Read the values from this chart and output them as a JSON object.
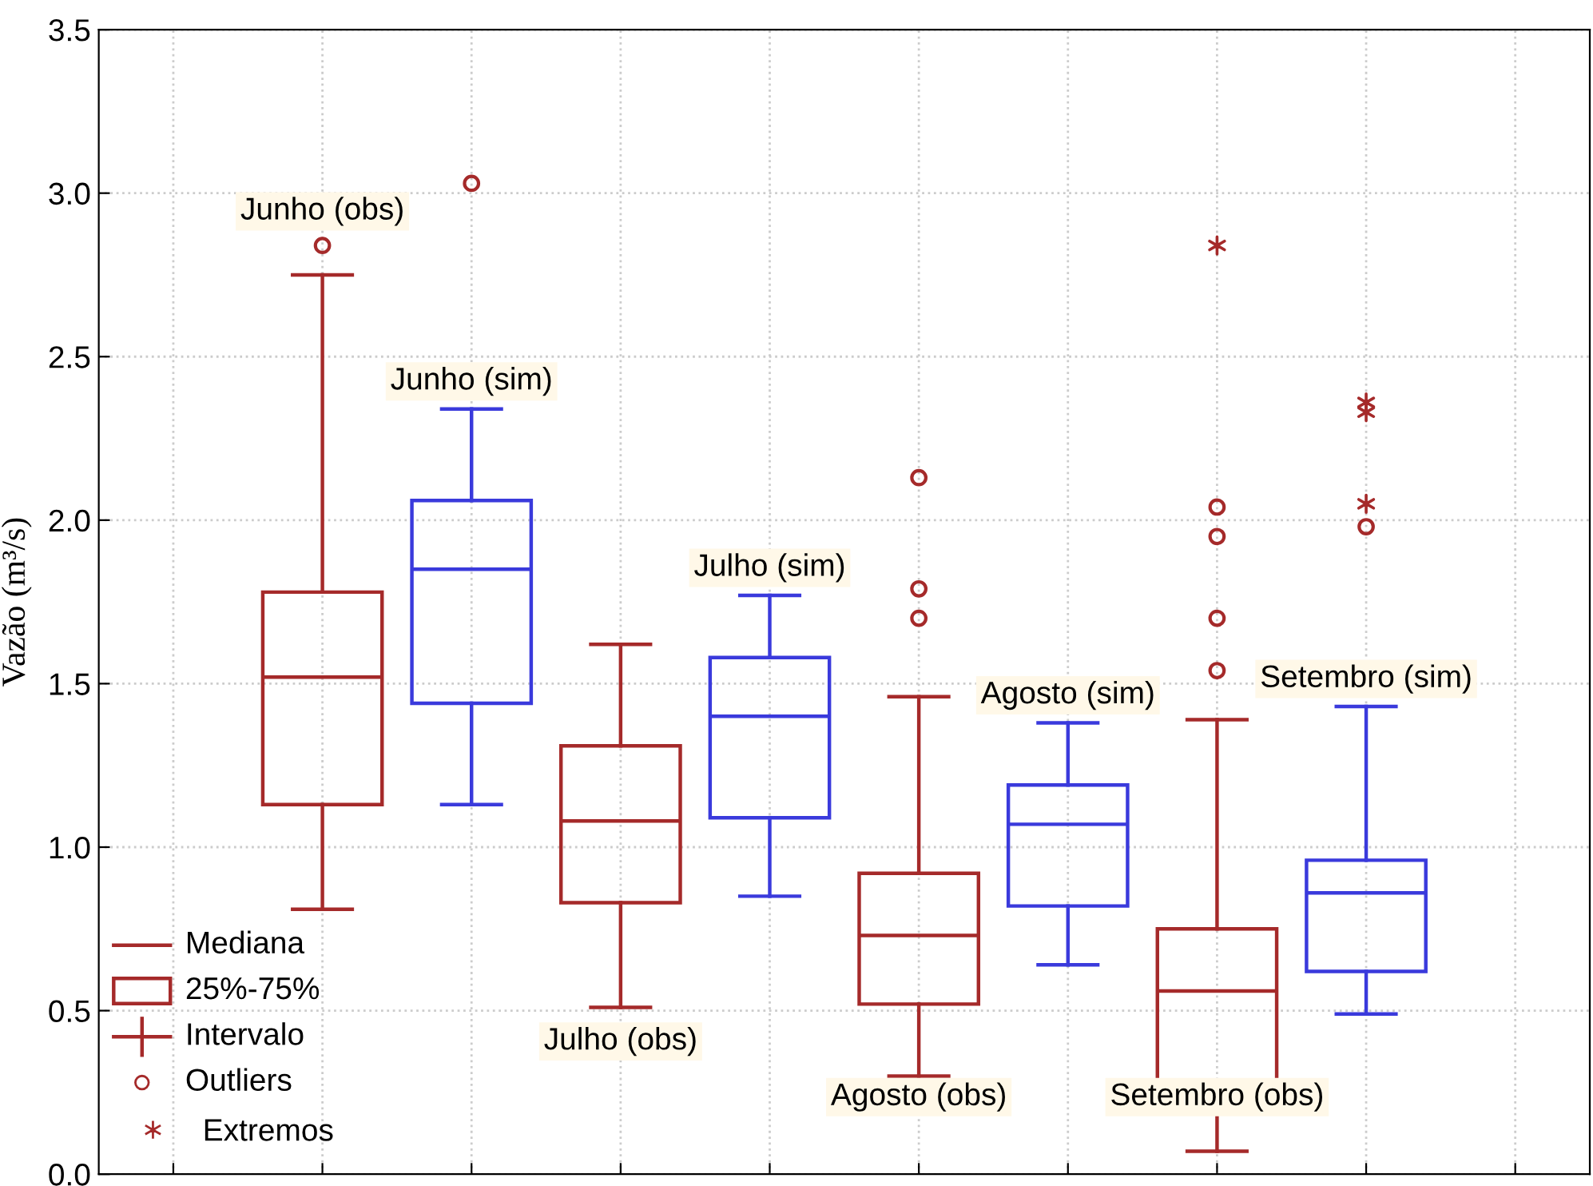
{
  "chart_data": {
    "type": "box",
    "ylabel": "Vazão (m³/s)",
    "categories": [
      null,
      null,
      null,
      null,
      null,
      null,
      null,
      null,
      null,
      null
    ],
    "colors": [
      null,
      "#a52a2a",
      "#3a3adc",
      "#a52a2a",
      "#3a3adc",
      "#a52a2a",
      "#3a3adc",
      "#a52a2a",
      "#3a3adc",
      null
    ],
    "boxes": [
      null,
      {
        "low": 0.81,
        "q1": 1.13,
        "median": 1.52,
        "q3": 1.78,
        "high": 2.75,
        "outliers": [
          2.84
        ]
      },
      {
        "low": 1.13,
        "q1": 1.44,
        "median": 1.85,
        "q3": 2.06,
        "high": 2.34,
        "outliers": [
          3.03
        ]
      },
      {
        "low": 0.51,
        "q1": 0.83,
        "median": 1.08,
        "q3": 1.31,
        "high": 1.62
      },
      {
        "low": 0.85,
        "q1": 1.09,
        "median": 1.4,
        "q3": 1.58,
        "high": 1.77
      },
      {
        "low": 0.3,
        "q1": 0.52,
        "median": 0.73,
        "q3": 0.92,
        "high": 1.46,
        "outliers": [
          2.13,
          1.79,
          1.7
        ]
      },
      {
        "low": 0.64,
        "q1": 0.82,
        "median": 1.07,
        "q3": 1.19,
        "high": 1.38
      },
      {
        "low": 0.07,
        "q1": 0.26,
        "median": 0.56,
        "q3": 0.75,
        "high": 1.39,
        "outliers": [
          2.04,
          1.95,
          1.7,
          1.54
        ]
      },
      {
        "low": 0.49,
        "q1": 0.62,
        "median": 0.86,
        "q3": 0.96,
        "high": 1.43,
        "outliers": [
          1.98
        ]
      },
      null
    ],
    "series": [
      {
        "name": "Extremos",
        "type": "scatter",
        "marker": "cross",
        "color": "#a52a2a",
        "values": [
          null,
          null,
          null,
          null,
          null,
          null,
          null,
          2.84,
          2.36,
          null
        ]
      },
      {
        "type": "scatter",
        "marker": "cross",
        "color": "#a52a2a",
        "values": [
          null,
          null,
          null,
          null,
          null,
          null,
          null,
          null,
          2.33,
          null
        ]
      },
      {
        "type": "scatter",
        "marker": "cross",
        "color": "#a52a2a",
        "values": [
          null,
          null,
          null,
          null,
          null,
          null,
          null,
          null,
          2.05,
          null
        ]
      }
    ],
    "annotations": [
      "Junho (obs)",
      "Junho (sim)",
      "Julho (obs)",
      "Julho (sim)",
      "Agosto (obs)",
      "Agosto (sim)",
      "Setembro (obs)",
      "Setembro (sim)",
      "Mediana",
      "25%-75%",
      "Intervalo",
      "Outliers"
    ],
    "ylim": [
      0,
      3.5
    ],
    "yticks": [
      {
        "value": 0,
        "label": "0.0"
      },
      {
        "value": 0.5,
        "label": "0.5"
      },
      {
        "value": 1,
        "label": "1.0"
      },
      {
        "value": 1.5,
        "label": "1.5"
      },
      {
        "value": 2,
        "label": "2.0"
      },
      {
        "value": 2.5,
        "label": "2.5"
      },
      {
        "value": 3,
        "label": "3.0"
      },
      {
        "value": 3.5,
        "label": "3.5"
      }
    ],
    "tick_labels": "y",
    "grid": true,
    "legend": "bottom left"
  }
}
